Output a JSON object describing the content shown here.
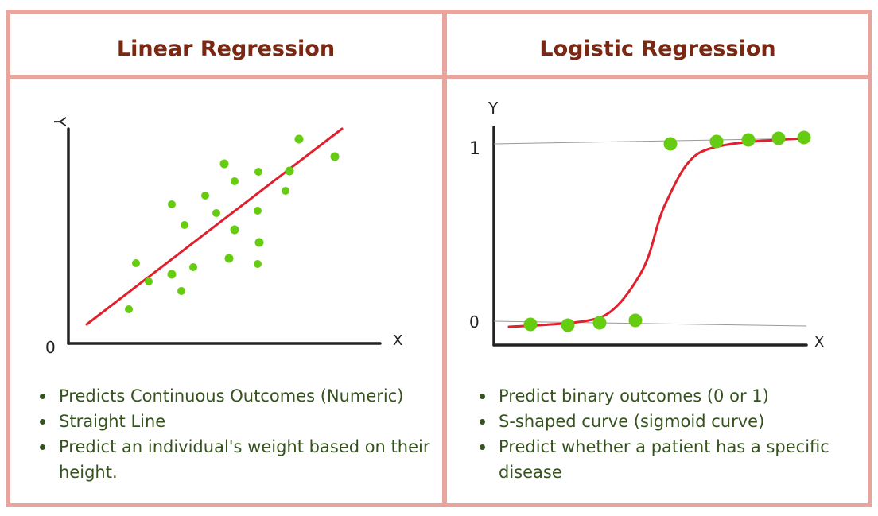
{
  "linear": {
    "title": "Linear Regression",
    "axis_labels": {
      "y": "Y",
      "x": "X",
      "origin": "0"
    },
    "bullets": [
      "Predicts Continuous Outcomes (Numeric)",
      "Straight Line",
      "Predict an individual's weight based on their height."
    ]
  },
  "logistic": {
    "title": "Logistic Regression",
    "axis_labels": {
      "y": "Y",
      "x": "X",
      "tick_one": "1",
      "tick_zero": "0"
    },
    "bullets": [
      "Predict binary outcomes (0 or 1)",
      "S-shaped curve (sigmoid curve)",
      "Predict whether a patient has a specific disease"
    ]
  },
  "colors": {
    "title": "#7a2812",
    "bullet_text": "#35521f",
    "border": "#e8a59e",
    "points": "#66cc11",
    "fit_line": "#e0202c",
    "axis": "#222222"
  }
}
